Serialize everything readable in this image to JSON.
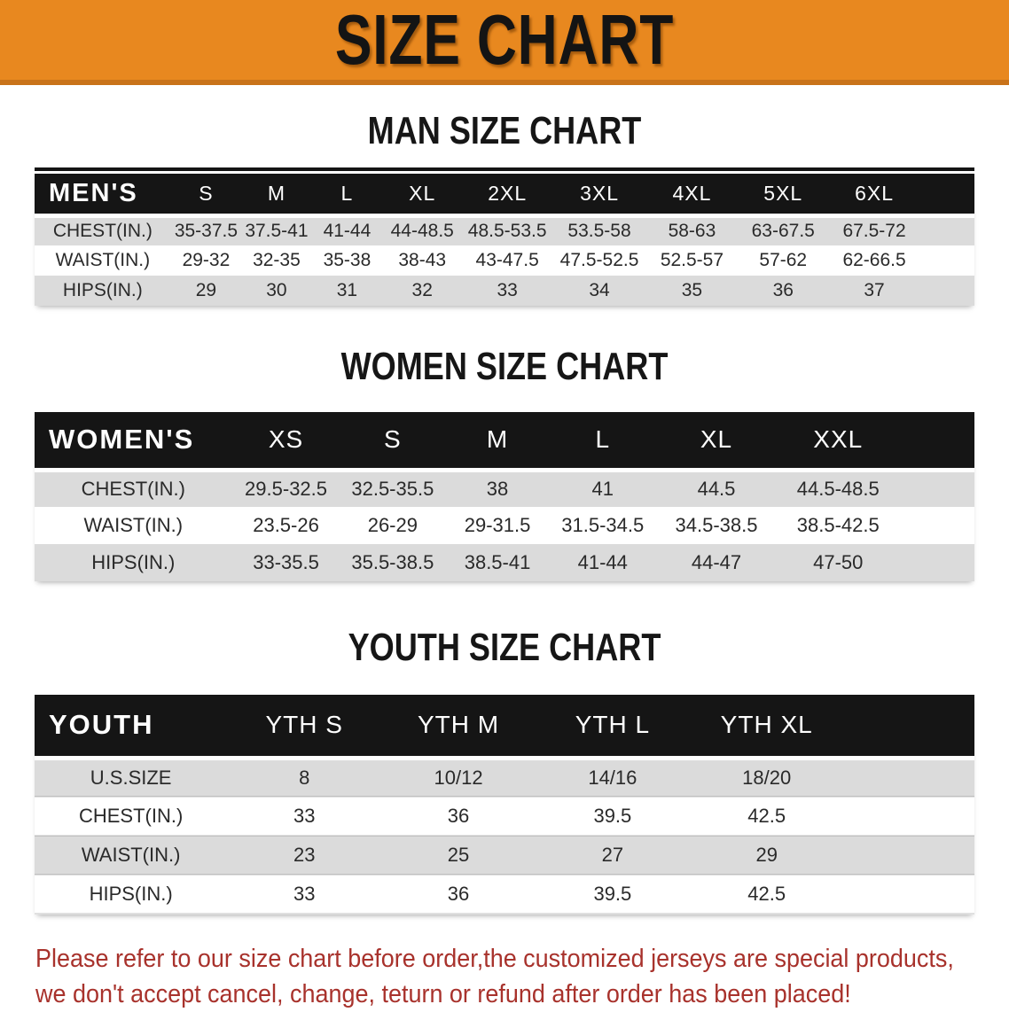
{
  "banner": {
    "title": "SIZE CHART",
    "bg_color": "#E8881F",
    "text_color": "#141414"
  },
  "colors": {
    "table_header_bg": "#151515",
    "table_header_text": "#FFFFFF",
    "row_stripe_gray": "#DBDBDB",
    "footer_red": "#A8322C"
  },
  "sections": [
    {
      "title": "MAN SIZE CHART",
      "group_label": "MEN'S",
      "columns": [
        "S",
        "M",
        "L",
        "XL",
        "2XL",
        "3XL",
        "4XL",
        "5XL",
        "6XL"
      ],
      "rows": [
        {
          "label": "CHEST(IN.)",
          "values": [
            "35-37.5",
            "37.5-41",
            "41-44",
            "44-48.5",
            "48.5-53.5",
            "53.5-58",
            "58-63",
            "63-67.5",
            "67.5-72"
          ]
        },
        {
          "label": "WAIST(IN.)",
          "values": [
            "29-32",
            "32-35",
            "35-38",
            "38-43",
            "43-47.5",
            "47.5-52.5",
            "52.5-57",
            "57-62",
            "62-66.5"
          ]
        },
        {
          "label": "HIPS(IN.)",
          "values": [
            "29",
            "30",
            "31",
            "32",
            "33",
            "34",
            "35",
            "36",
            "37"
          ]
        }
      ]
    },
    {
      "title": "WOMEN SIZE CHART",
      "group_label": "WOMEN'S",
      "columns": [
        "XS",
        "S",
        "M",
        "L",
        "XL",
        "XXL"
      ],
      "rows": [
        {
          "label": "CHEST(IN.)",
          "values": [
            "29.5-32.5",
            "32.5-35.5",
            "38",
            "41",
            "44.5",
            "44.5-48.5"
          ]
        },
        {
          "label": "WAIST(IN.)",
          "values": [
            "23.5-26",
            "26-29",
            "29-31.5",
            "31.5-34.5",
            "34.5-38.5",
            "38.5-42.5"
          ]
        },
        {
          "label": "HIPS(IN.)",
          "values": [
            "33-35.5",
            "35.5-38.5",
            "38.5-41",
            "41-44",
            "44-47",
            "47-50"
          ]
        }
      ]
    },
    {
      "title": "YOUTH SIZE CHART",
      "group_label": "YOUTH",
      "columns": [
        "YTH S",
        "YTH M",
        "YTH L",
        "YTH XL"
      ],
      "rows": [
        {
          "label": "U.S.SIZE",
          "values": [
            "8",
            "10/12",
            "14/16",
            "18/20"
          ]
        },
        {
          "label": "CHEST(IN.)",
          "values": [
            "33",
            "36",
            "39.5",
            "42.5"
          ]
        },
        {
          "label": "WAIST(IN.)",
          "values": [
            "23",
            "25",
            "27",
            "29"
          ]
        },
        {
          "label": "HIPS(IN.)",
          "values": [
            "33",
            "36",
            "39.5",
            "42.5"
          ]
        }
      ]
    }
  ],
  "footer": {
    "line1": "Please refer to our size chart before order,the customized jerseys are special products,",
    "line2": "we don't accept cancel, change, teturn or refund after order has been placed!"
  }
}
